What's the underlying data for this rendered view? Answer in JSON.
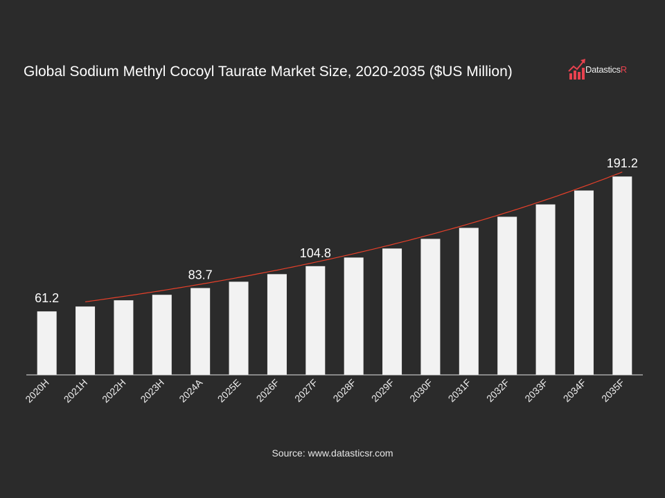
{
  "chart_data": {
    "type": "bar",
    "title": "Global Sodium Methyl Cocoyl Taurate Market Size, 2020-2035 ($US Million)",
    "categories": [
      "2020H",
      "2021H",
      "2022H",
      "2023H",
      "2024A",
      "2025E",
      "2026F",
      "2027F",
      "2028F",
      "2029F",
      "2030F",
      "2031F",
      "2032F",
      "2033F",
      "2034F",
      "2035F"
    ],
    "values": [
      61.2,
      65.9,
      71.9,
      77.2,
      83.7,
      89.8,
      97.1,
      104.8,
      113.1,
      121.8,
      131.1,
      141.7,
      152.4,
      164.3,
      177.7,
      191.2
    ],
    "data_labels": {
      "0": "61.2",
      "4": "83.7",
      "7": "104.8",
      "15": "191.2"
    },
    "ylim": [
      0,
      200
    ],
    "xlabel": "",
    "ylabel": "",
    "grid": false,
    "trendline": {
      "type": "exponential",
      "from": "2021H",
      "to": "2035F",
      "color": "#e8402a"
    },
    "bar_color": "#f2f2f2",
    "background": "#2b2b2b"
  },
  "logo": {
    "text_main": "Datastics",
    "text_accent": "R",
    "accent_color": "#e8424f"
  },
  "source": "Source: www.datasticsr.com"
}
